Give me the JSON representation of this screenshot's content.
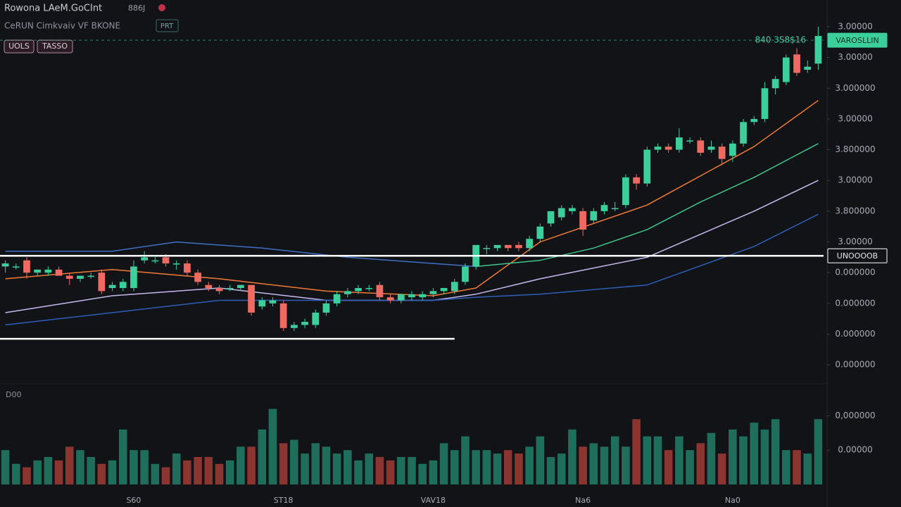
{
  "header": {
    "title": "Rowona LAeM.GoCInt",
    "code": "886J",
    "subtitle": "CeRUN Cimkvaiv VF BKONE",
    "badge": "PRT",
    "buttons": [
      "UOLS",
      "TASSO"
    ]
  },
  "chart_data": {
    "type": "candlestick",
    "categories": [
      null,
      null,
      null,
      null,
      null,
      null,
      null,
      null,
      null,
      null,
      null,
      null,
      "S60",
      null,
      null,
      null,
      null,
      null,
      null,
      null,
      null,
      null,
      null,
      null,
      null,
      null,
      "ST18",
      null,
      null,
      null,
      null,
      null,
      null,
      null,
      null,
      null,
      null,
      null,
      null,
      null,
      "VAV18",
      null,
      null,
      null,
      null,
      null,
      null,
      null,
      null,
      null,
      null,
      null,
      null,
      null,
      "Na6",
      null,
      null,
      null,
      null,
      null,
      null,
      null,
      null,
      null,
      null,
      null,
      null,
      null,
      "Na0",
      null,
      null,
      null,
      null,
      null,
      null,
      null,
      null
    ],
    "ohlc": [
      [
        4.2,
        4.4,
        4.0,
        4.3
      ],
      [
        4.2,
        4.3,
        4.1,
        4.2
      ],
      [
        4.4,
        4.5,
        3.8,
        4.0
      ],
      [
        4.0,
        4.1,
        3.9,
        4.1
      ],
      [
        4.0,
        4.2,
        3.9,
        4.1
      ],
      [
        4.1,
        4.2,
        3.9,
        3.9
      ],
      [
        3.9,
        4.0,
        3.6,
        3.8
      ],
      [
        3.8,
        3.9,
        3.7,
        3.9
      ],
      [
        3.9,
        4.0,
        3.8,
        3.9
      ],
      [
        4.0,
        4.1,
        3.3,
        3.4
      ],
      [
        3.5,
        3.7,
        3.4,
        3.6
      ],
      [
        3.5,
        3.8,
        3.4,
        3.7
      ],
      [
        3.5,
        4.4,
        3.4,
        4.2
      ],
      [
        4.4,
        4.7,
        4.3,
        4.5
      ],
      [
        4.4,
        4.5,
        4.3,
        4.4
      ],
      [
        4.5,
        4.6,
        4.2,
        4.3
      ],
      [
        4.3,
        4.4,
        4.1,
        4.3
      ],
      [
        4.3,
        4.4,
        3.9,
        4.0
      ],
      [
        4.0,
        4.1,
        3.6,
        3.7
      ],
      [
        3.6,
        3.7,
        3.4,
        3.5
      ],
      [
        3.5,
        3.6,
        3.3,
        3.4
      ],
      [
        3.5,
        3.6,
        3.4,
        3.5
      ],
      [
        3.5,
        3.6,
        3.4,
        3.6
      ],
      [
        3.6,
        3.6,
        2.6,
        2.7
      ],
      [
        2.9,
        3.2,
        2.8,
        3.1
      ],
      [
        3.0,
        3.2,
        2.9,
        3.1
      ],
      [
        3.0,
        3.1,
        2.1,
        2.2
      ],
      [
        2.2,
        2.4,
        2.1,
        2.3
      ],
      [
        2.3,
        2.5,
        2.2,
        2.4
      ],
      [
        2.3,
        2.8,
        2.2,
        2.7
      ],
      [
        2.7,
        3.1,
        2.6,
        3.0
      ],
      [
        3.0,
        3.4,
        2.9,
        3.3
      ],
      [
        3.3,
        3.5,
        3.2,
        3.4
      ],
      [
        3.4,
        3.6,
        3.3,
        3.5
      ],
      [
        3.5,
        3.6,
        3.4,
        3.5
      ],
      [
        3.6,
        3.7,
        3.1,
        3.2
      ],
      [
        3.2,
        3.3,
        3.0,
        3.1
      ],
      [
        3.1,
        3.3,
        3.0,
        3.3
      ],
      [
        3.2,
        3.4,
        3.1,
        3.3
      ],
      [
        3.2,
        3.4,
        3.1,
        3.3
      ],
      [
        3.3,
        3.5,
        3.2,
        3.4
      ],
      [
        3.4,
        3.5,
        3.3,
        3.5
      ],
      [
        3.4,
        3.8,
        3.3,
        3.7
      ],
      [
        3.7,
        4.3,
        3.6,
        4.2
      ],
      [
        4.2,
        4.9,
        4.1,
        4.9
      ],
      [
        4.8,
        4.9,
        4.6,
        4.8
      ],
      [
        4.8,
        4.9,
        4.7,
        4.9
      ],
      [
        4.9,
        4.9,
        4.7,
        4.8
      ],
      [
        4.9,
        5.0,
        4.7,
        4.8
      ],
      [
        4.8,
        5.2,
        4.7,
        5.1
      ],
      [
        5.1,
        5.6,
        5.0,
        5.5
      ],
      [
        5.6,
        6.0,
        5.5,
        6.0
      ],
      [
        5.8,
        6.2,
        5.7,
        6.1
      ],
      [
        6.0,
        6.2,
        5.9,
        6.1
      ],
      [
        6.0,
        6.1,
        5.2,
        5.4
      ],
      [
        5.7,
        6.1,
        5.6,
        6.0
      ],
      [
        6.0,
        6.3,
        5.9,
        6.2
      ],
      [
        6.1,
        6.3,
        6.0,
        6.1
      ],
      [
        6.2,
        7.2,
        6.1,
        7.1
      ],
      [
        7.1,
        7.2,
        6.7,
        6.9
      ],
      [
        6.9,
        8.1,
        6.8,
        8.0
      ],
      [
        8.0,
        8.2,
        7.9,
        8.1
      ],
      [
        8.1,
        8.2,
        7.9,
        8.0
      ],
      [
        8.0,
        8.7,
        7.9,
        8.4
      ],
      [
        8.3,
        8.4,
        8.2,
        8.3
      ],
      [
        8.3,
        8.4,
        7.8,
        7.9
      ],
      [
        8.0,
        8.3,
        7.9,
        8.1
      ],
      [
        8.1,
        8.2,
        7.5,
        7.7
      ],
      [
        7.8,
        8.3,
        7.6,
        8.2
      ],
      [
        8.2,
        9.0,
        8.1,
        8.9
      ],
      [
        8.9,
        9.1,
        8.8,
        9.0
      ],
      [
        9.0,
        10.2,
        8.9,
        10.0
      ],
      [
        10.0,
        10.4,
        9.8,
        10.3
      ],
      [
        10.2,
        11.1,
        10.1,
        11.0
      ],
      [
        11.1,
        11.3,
        10.4,
        10.5
      ],
      [
        10.6,
        10.9,
        10.5,
        10.7
      ],
      [
        10.8,
        12.0,
        10.6,
        11.7
      ]
    ],
    "up_color": "#3ccf9c",
    "down_color": "#ef6a60",
    "series": [
      {
        "color": "#3f6fc4",
        "x": [
          0,
          10,
          16,
          24,
          32,
          44
        ],
        "values": [
          4.7,
          4.7,
          5.0,
          4.8,
          4.5,
          4.2
        ]
      },
      {
        "color": "#f07a34",
        "x": [
          0,
          10,
          20,
          30,
          40,
          44,
          50,
          60,
          70,
          76
        ],
        "values": [
          3.8,
          4.1,
          3.8,
          3.4,
          3.25,
          3.5,
          5.0,
          6.2,
          8.1,
          9.6
        ]
      },
      {
        "color": "#40c48a",
        "x": [
          44,
          50,
          55,
          60,
          65,
          70,
          76
        ],
        "values": [
          4.2,
          4.4,
          4.8,
          5.4,
          6.3,
          7.1,
          8.2
        ]
      },
      {
        "color": "#c7b8f0",
        "x": [
          0,
          10,
          20,
          30,
          40,
          44,
          50,
          60,
          70,
          76
        ],
        "values": [
          2.7,
          3.25,
          3.5,
          3.1,
          3.1,
          3.3,
          3.8,
          4.5,
          6.0,
          7.0
        ]
      },
      {
        "color": "#2d5fb8",
        "x": [
          0,
          10,
          20,
          30,
          40,
          44,
          50,
          60,
          70,
          76
        ],
        "values": [
          2.3,
          2.7,
          3.1,
          3.1,
          3.1,
          3.2,
          3.3,
          3.6,
          4.85,
          5.9
        ]
      }
    ],
    "hlines": [
      {
        "value": 4.55,
        "label": "UNOOOOB",
        "color": "#ffffff"
      },
      {
        "value": 1.85,
        "color": "#ffffff",
        "end": 42
      },
      {
        "value": 11.56,
        "label": "VAROSLLIN",
        "annotation": "840 3S8$16",
        "color": "#3ccf9c",
        "dashed": true
      }
    ],
    "ylim": [
      0.5,
      12.87
    ],
    "yticks": [
      {
        "value": 12,
        "label": "3.00000"
      },
      {
        "value": 11,
        "label": "3.00000"
      },
      {
        "value": 10,
        "label": "3.000000"
      },
      {
        "value": 9,
        "label": "3.00000"
      },
      {
        "value": 8,
        "label": "3.800000"
      },
      {
        "value": 7,
        "label": "3.00000"
      },
      {
        "value": 6,
        "label": "3.800000"
      },
      {
        "value": 5,
        "label": "3.00000"
      },
      {
        "value": 4,
        "label": "0.000000"
      },
      {
        "value": 3,
        "label": "0.000000"
      },
      {
        "value": 2,
        "label": "0.000000"
      },
      {
        "value": 1,
        "label": "0.000000"
      }
    ],
    "volume_label": "D00",
    "volumes": [
      1.0,
      0.6,
      0.5,
      0.7,
      0.8,
      0.7,
      1.1,
      1.0,
      0.8,
      0.6,
      0.7,
      1.6,
      1.0,
      1.0,
      0.6,
      0.5,
      0.9,
      0.7,
      0.8,
      0.8,
      0.6,
      0.7,
      1.1,
      1.1,
      1.6,
      2.2,
      1.2,
      1.3,
      0.9,
      1.2,
      1.1,
      0.9,
      1.0,
      0.7,
      0.9,
      0.8,
      0.7,
      0.8,
      0.8,
      0.6,
      0.7,
      1.2,
      1.0,
      1.4,
      1.0,
      1.0,
      0.9,
      1.0,
      0.9,
      1.1,
      1.4,
      0.8,
      0.9,
      1.6,
      1.1,
      1.2,
      1.1,
      1.4,
      1.1,
      1.9,
      1.4,
      1.4,
      1.0,
      1.4,
      1.0,
      1.2,
      1.5,
      0.9,
      1.6,
      1.4,
      1.8,
      1.6,
      1.9,
      1.0,
      1.0,
      0.9,
      1.9
    ],
    "volume_up_color": "#1f6e5c",
    "volume_down_color": "#8b3531",
    "vlim": [
      0,
      2.5
    ],
    "vticks": [
      {
        "value": 2,
        "label": "0,000000"
      },
      {
        "value": 1,
        "label": "0.00000"
      }
    ]
  }
}
